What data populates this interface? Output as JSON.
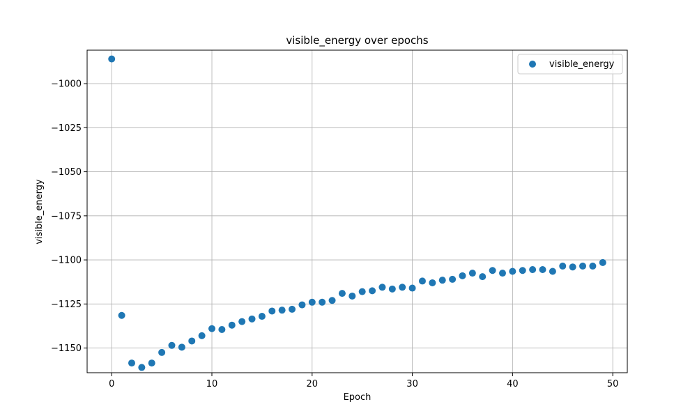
{
  "chart_data": {
    "type": "scatter",
    "title": "visible_energy over epochs",
    "xlabel": "Epoch",
    "ylabel": "visible_energy",
    "xlim": [
      -2.45,
      51.45
    ],
    "ylim": [
      -1164,
      -981
    ],
    "xticks": [
      0,
      10,
      20,
      30,
      40,
      50
    ],
    "yticks": [
      -1000,
      -1025,
      -1050,
      -1075,
      -1100,
      -1125,
      -1150
    ],
    "grid": true,
    "legend_position": "top-right",
    "series": [
      {
        "name": "visible_energy",
        "color": "#1f77b4",
        "x": [
          0,
          1,
          2,
          3,
          4,
          5,
          6,
          7,
          8,
          9,
          10,
          11,
          12,
          13,
          14,
          15,
          16,
          17,
          18,
          19,
          20,
          21,
          22,
          23,
          24,
          25,
          26,
          27,
          28,
          29,
          30,
          31,
          32,
          33,
          34,
          35,
          36,
          37,
          38,
          39,
          40,
          41,
          42,
          43,
          44,
          45,
          46,
          47,
          48,
          49
        ],
        "y": [
          -986,
          -1131.5,
          -1158.5,
          -1161,
          -1158.5,
          -1152.5,
          -1148.5,
          -1149.5,
          -1146,
          -1143,
          -1139,
          -1139.5,
          -1137,
          -1135,
          -1133.5,
          -1132,
          -1129,
          -1128.5,
          -1128,
          -1125.5,
          -1124,
          -1124,
          -1123,
          -1119,
          -1120.5,
          -1118,
          -1117.5,
          -1115.5,
          -1116.5,
          -1115.5,
          -1116,
          -1112,
          -1113,
          -1111.5,
          -1111,
          -1109,
          -1107.5,
          -1109.5,
          -1106,
          -1107.5,
          -1106.5,
          -1106,
          -1105.5,
          -1105.5,
          -1106.5,
          -1103.5,
          -1104,
          -1103.5,
          -1103.5,
          -1101.5
        ]
      }
    ]
  }
}
